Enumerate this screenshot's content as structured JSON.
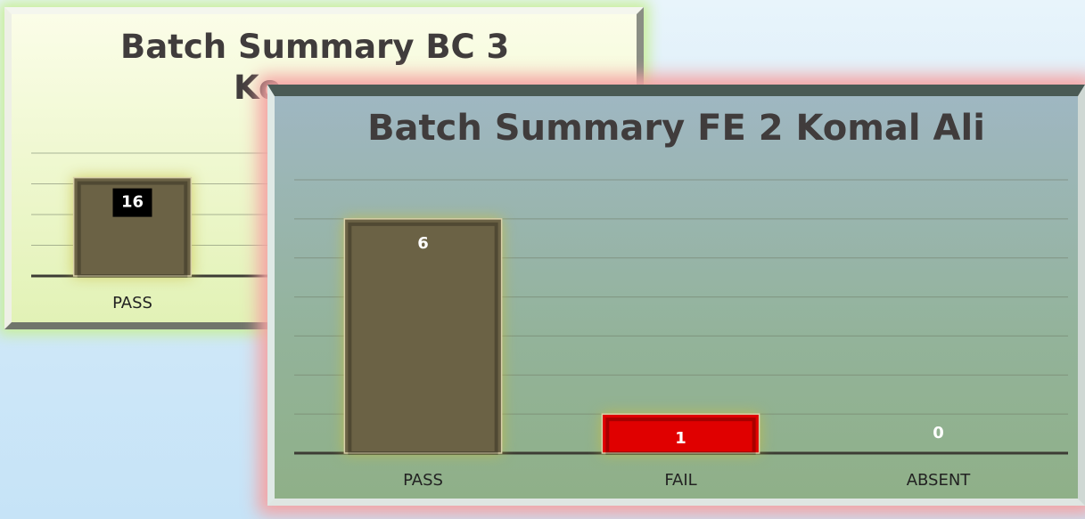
{
  "chart_data": [
    {
      "type": "bar",
      "title": "Batch Summary BC 3 Ko",
      "categories": [
        "PASS"
      ],
      "values": [
        16
      ],
      "color": "#6b6245",
      "ylim": [
        0,
        20
      ],
      "yticks": [
        0,
        5,
        10,
        15,
        20
      ],
      "grid": true
    },
    {
      "type": "bar",
      "title": "Batch Summary FE 2 Komal Ali",
      "categories": [
        "PASS",
        "FAIL",
        "ABSENT"
      ],
      "values": [
        6,
        1,
        0
      ],
      "colors": [
        "#6b6245",
        "#e00000",
        "#6b6245"
      ],
      "ylim": [
        0,
        7
      ],
      "yticks": [
        0,
        1,
        2,
        3,
        4,
        5,
        6,
        7
      ],
      "grid": true
    }
  ]
}
